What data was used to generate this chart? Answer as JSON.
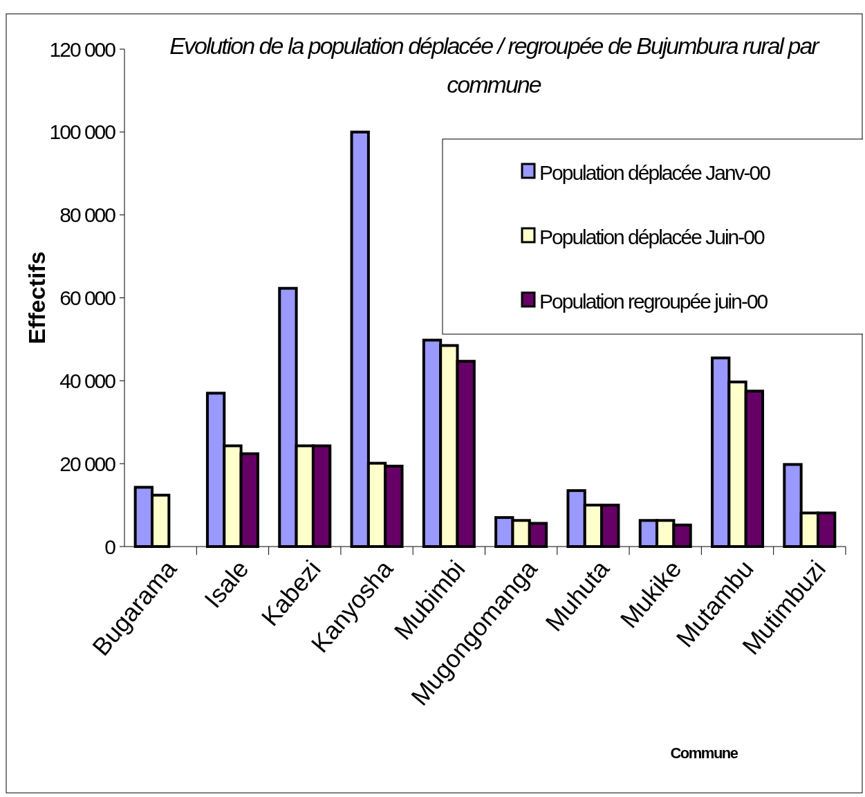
{
  "chart_data": {
    "type": "bar",
    "title": "Evolution de la population déplacée / regroupée de Bujumbura rural par commune",
    "xlabel": "Commune",
    "ylabel": "Effectifs",
    "categories": [
      "Bugarama",
      "Isale",
      "Kabezi",
      "Kanyosha",
      "Mubimbi",
      "Mugongomanga",
      "Muhuta",
      "Mukike",
      "Mutambu",
      "Mutimbuzi"
    ],
    "series": [
      {
        "name": "Population déplacée Janv-00",
        "color": "#9999ff",
        "values": [
          14300,
          37000,
          62300,
          100000,
          49800,
          7000,
          13500,
          6300,
          45500,
          19800
        ]
      },
      {
        "name": "Population déplacée Juin-00",
        "color": "#ffffcc",
        "values": [
          12400,
          24300,
          24300,
          20100,
          48500,
          6300,
          10000,
          6300,
          39700,
          8100
        ]
      },
      {
        "name": "Population regroupée juin-00",
        "color": "#660066",
        "values": [
          null,
          22400,
          24300,
          19400,
          44700,
          5600,
          10000,
          5200,
          37500,
          8100
        ]
      }
    ],
    "ylim": [
      0,
      120000
    ],
    "yticks": [
      {
        "value": 0,
        "label": "0"
      },
      {
        "value": 20000,
        "label": "20 000"
      },
      {
        "value": 40000,
        "label": "40 000"
      },
      {
        "value": 60000,
        "label": "60 000"
      },
      {
        "value": 80000,
        "label": "80 000"
      },
      {
        "value": 100000,
        "label": "100 000"
      },
      {
        "value": 120000,
        "label": "120 000"
      }
    ],
    "grid": false,
    "legend": "top right"
  }
}
